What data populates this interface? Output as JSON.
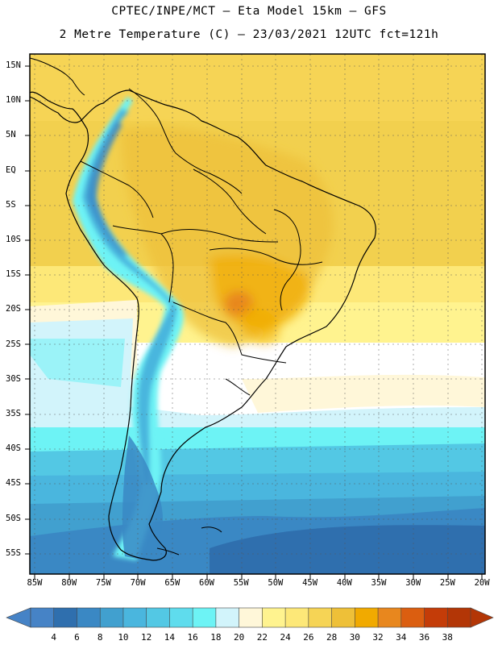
{
  "header": {
    "line1": "CPTEC/INPE/MCT –  Eta Model 15km – GFS",
    "line2": "2 Metre Temperature (C) – 23/03/2021 12UTC fct=121h"
  },
  "axes": {
    "latitude_labels": [
      "15N",
      "10N",
      "5N",
      "EQ",
      "5S",
      "10S",
      "15S",
      "20S",
      "25S",
      "30S",
      "35S",
      "40S",
      "45S",
      "50S",
      "55S"
    ],
    "longitude_labels": [
      "85W",
      "80W",
      "75W",
      "70W",
      "65W",
      "60W",
      "55W",
      "50W",
      "45W",
      "40W",
      "35W",
      "30W",
      "25W",
      "20W"
    ]
  },
  "colorbar": {
    "labels": [
      "4",
      "6",
      "8",
      "10",
      "12",
      "14",
      "16",
      "18",
      "20",
      "22",
      "24",
      "26",
      "28",
      "30",
      "32",
      "34",
      "36",
      "38"
    ],
    "colors": [
      "#4683c6",
      "#2f6fae",
      "#3a88c4",
      "#41a0cf",
      "#4ab6de",
      "#53c8e4",
      "#5fdced",
      "#6df3f5",
      "#d2f4fb",
      "#fff7d9",
      "#fff38f",
      "#fde878",
      "#f6d455",
      "#eec038",
      "#f1aa00",
      "#e8871e",
      "#db5e10",
      "#c43c08",
      "#b33606"
    ],
    "under_color": "#4683c6",
    "over_color": "#b33606"
  }
}
